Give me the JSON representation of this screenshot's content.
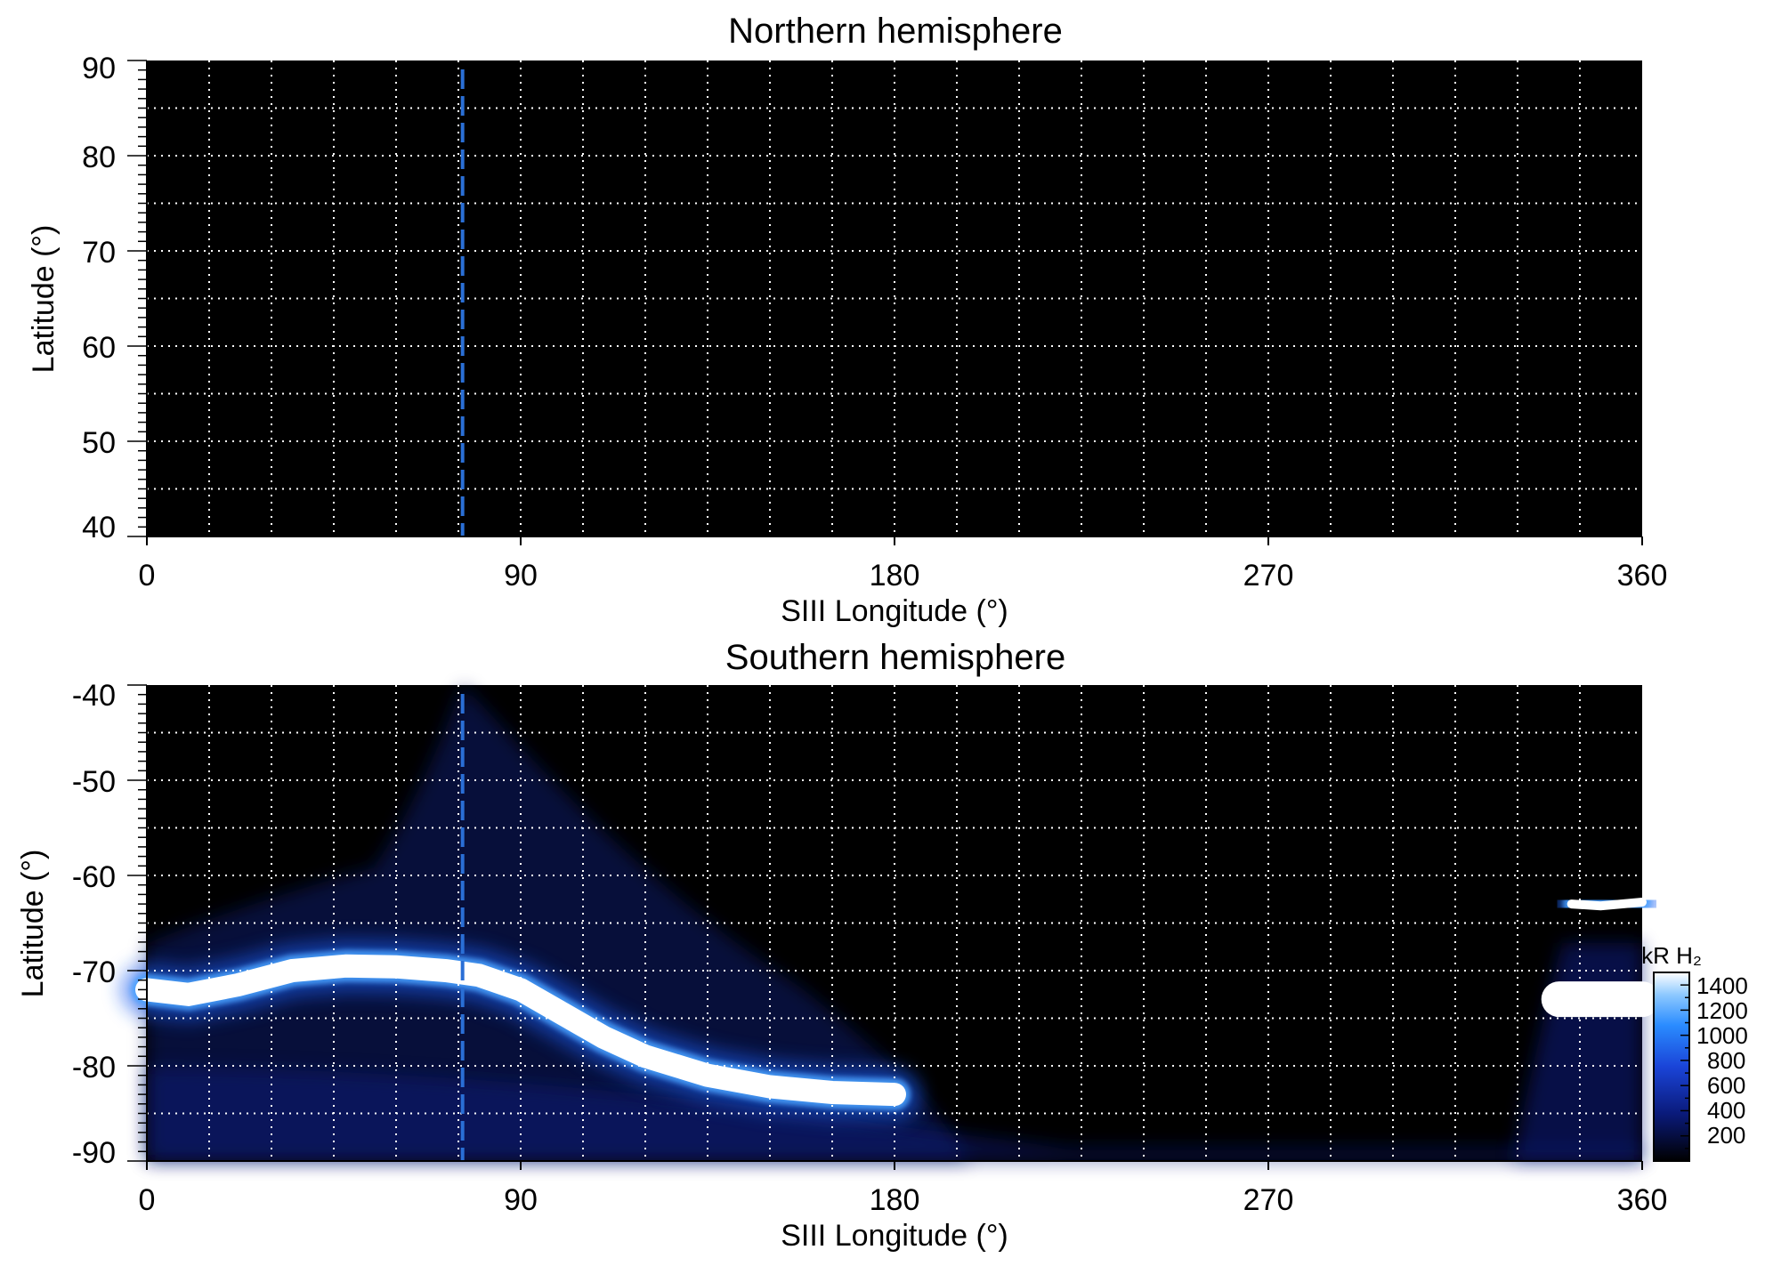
{
  "chart_data": [
    {
      "type": "heatmap",
      "title": "Northern hemisphere",
      "xlabel": "SIII Longitude (°)",
      "ylabel": "Latitude (°)",
      "xlim": [
        0,
        360
      ],
      "ylim": [
        40,
        90
      ],
      "xticks": [
        "0",
        "90",
        "180",
        "270",
        "360"
      ],
      "yticks": [
        "90",
        "80",
        "70",
        "60",
        "50",
        "40"
      ],
      "grid": true,
      "reference_longitude": 76,
      "emission_bands": []
    },
    {
      "type": "heatmap",
      "title": "Southern hemisphere",
      "xlabel": "SIII Longitude (°)",
      "ylabel": "Latitude (°)",
      "xlim": [
        0,
        360
      ],
      "ylim": [
        -90,
        -40
      ],
      "xticks": [
        "0",
        "90",
        "180",
        "270",
        "360"
      ],
      "yticks": [
        "-40",
        "-50",
        "-60",
        "-70",
        "-80",
        "-90"
      ],
      "grid": true,
      "reference_longitude": 76,
      "emission_bands": [
        {
          "name": "main-oval",
          "intensity": 1400,
          "points": [
            [
              0,
              -72
            ],
            [
              10,
              -72.5
            ],
            [
              22,
              -71.5
            ],
            [
              35,
              -70
            ],
            [
              48,
              -69.5
            ],
            [
              60,
              -69.6
            ],
            [
              72,
              -70
            ],
            [
              80,
              -70.5
            ],
            [
              90,
              -72
            ],
            [
              100,
              -74.5
            ],
            [
              110,
              -77
            ],
            [
              120,
              -79
            ],
            [
              135,
              -81
            ],
            [
              150,
              -82.2
            ],
            [
              165,
              -82.8
            ],
            [
              180,
              -83
            ]
          ]
        },
        {
          "name": "upper-arc-right",
          "intensity": 1300,
          "points": [
            [
              343,
              -63
            ],
            [
              350,
              -63.2
            ],
            [
              360,
              -62.8
            ]
          ]
        },
        {
          "name": "band-right",
          "intensity": 1400,
          "points": [
            [
              340,
              -73
            ],
            [
              350,
              -73
            ],
            [
              360,
              -73
            ]
          ]
        }
      ],
      "colorbar": {
        "label": "kR H₂",
        "ticks": [
          "1400",
          "1200",
          "1000",
          "800",
          "600",
          "400",
          "200"
        ],
        "range": [
          0,
          1500
        ]
      }
    }
  ]
}
